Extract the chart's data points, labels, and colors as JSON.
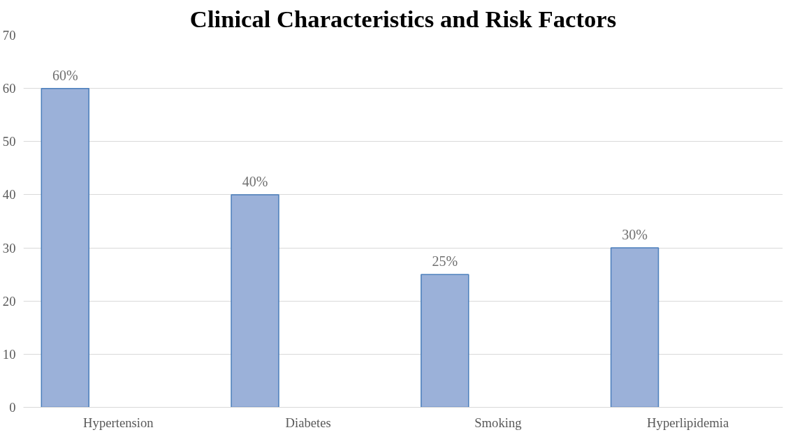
{
  "chart_data": {
    "type": "bar",
    "title": "Clinical Characteristics and Risk Factors",
    "categories": [
      "Hypertension",
      "Diabetes",
      "Smoking",
      "Hyperlipidemia"
    ],
    "values": [
      60,
      40,
      25,
      30
    ],
    "value_labels": [
      "60%",
      "40%",
      "25%",
      "30%"
    ],
    "color": "#9bb1d9",
    "ylim": [
      0,
      70
    ],
    "yticks": [
      0,
      10,
      20,
      30,
      40,
      50,
      60,
      70
    ],
    "grid": "y"
  }
}
